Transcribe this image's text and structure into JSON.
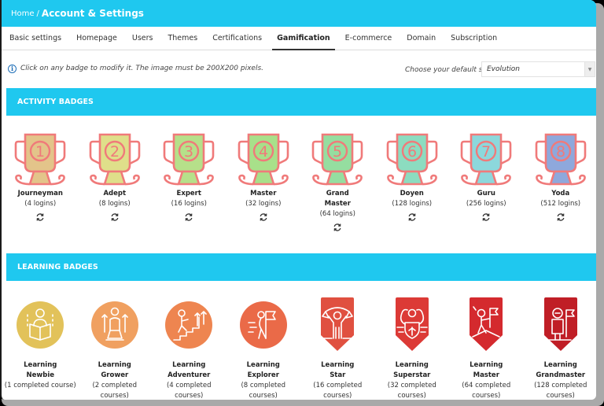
{
  "header": {
    "breadcrumb_home": "Home",
    "breadcrumb_sep": "/",
    "title": "Account & Settings"
  },
  "tabs": [
    {
      "label": "Basic settings",
      "active": false
    },
    {
      "label": "Homepage",
      "active": false
    },
    {
      "label": "Users",
      "active": false
    },
    {
      "label": "Themes",
      "active": false
    },
    {
      "label": "Certifications",
      "active": false
    },
    {
      "label": "Gamification",
      "active": true
    },
    {
      "label": "E-commerce",
      "active": false
    },
    {
      "label": "Domain",
      "active": false
    },
    {
      "label": "Subscription",
      "active": false
    }
  ],
  "info": {
    "icon": "info-icon",
    "text": "Click on any badge to modify it. The image must be 200X200 pixels.",
    "set_label": "Choose your default set",
    "set_value": "Evolution"
  },
  "activity": {
    "title": "ACTIVITY BADGES",
    "badges": [
      {
        "number": "1",
        "name": "Journeyman",
        "requirement": "(4 logins)",
        "fill": "#e3c48a"
      },
      {
        "number": "2",
        "name": "Adept",
        "requirement": "(8 logins)",
        "fill": "#dfdf8a"
      },
      {
        "number": "3",
        "name": "Expert",
        "requirement": "(16 logins)",
        "fill": "#b6e08a"
      },
      {
        "number": "4",
        "name": "Master",
        "requirement": "(32 logins)",
        "fill": "#a8e08a"
      },
      {
        "number": "5",
        "name": "Grand\nMaster",
        "name_line1": "Grand",
        "name_line2": "Master",
        "requirement": "(64 logins)",
        "fill": "#95dea0"
      },
      {
        "number": "6",
        "name": "Doyen",
        "requirement": "(128 logins)",
        "fill": "#8cdcc0"
      },
      {
        "number": "7",
        "name": "Guru",
        "requirement": "(256 logins)",
        "fill": "#8cd8dc"
      },
      {
        "number": "8",
        "name": "Yoda",
        "requirement": "(512 logins)",
        "fill": "#8ea8dc"
      }
    ],
    "outline_color": "#f07a7a"
  },
  "learning": {
    "title": "LEARNING BADGES",
    "badges": [
      {
        "line1": "Learning",
        "line2": "Newbie",
        "req1": "(1 completed course)",
        "req2": "",
        "shape": "circle",
        "color": "#e2c25a",
        "icon": "reading-person-icon"
      },
      {
        "line1": "Learning",
        "line2": "Grower",
        "req1": "(2 completed",
        "req2": "courses)",
        "shape": "circle",
        "color": "#f0a060",
        "icon": "growing-person-icon"
      },
      {
        "line1": "Learning",
        "line2": "Adventurer",
        "req1": "(4 completed",
        "req2": "courses)",
        "shape": "circle",
        "color": "#ee8550",
        "icon": "climbing-stairs-icon"
      },
      {
        "line1": "Learning",
        "line2": "Explorer",
        "req1": "(8 completed",
        "req2": "courses)",
        "shape": "circle",
        "color": "#ea6a48",
        "icon": "explorer-flag-icon"
      },
      {
        "line1": "Learning",
        "line2": "Star",
        "req1": "(16 completed",
        "req2": "courses)",
        "shape": "shield",
        "color": "#e05040",
        "icon": "star-banner-icon"
      },
      {
        "line1": "Learning",
        "line2": "Superstar",
        "req1": "(32 completed",
        "req2": "courses)",
        "shape": "shield",
        "color": "#dc3a36",
        "icon": "superhero-shield-icon"
      },
      {
        "line1": "Learning",
        "line2": "Master",
        "req1": "(64 completed",
        "req2": "courses)",
        "shape": "shield",
        "color": "#d42a2e",
        "icon": "summit-flag-icon"
      },
      {
        "line1": "Learning",
        "line2": "Grandmaster",
        "req1": "(128 completed",
        "req2": "courses)",
        "shape": "shield",
        "color": "#c01e26",
        "icon": "astronaut-flag-icon"
      }
    ]
  }
}
